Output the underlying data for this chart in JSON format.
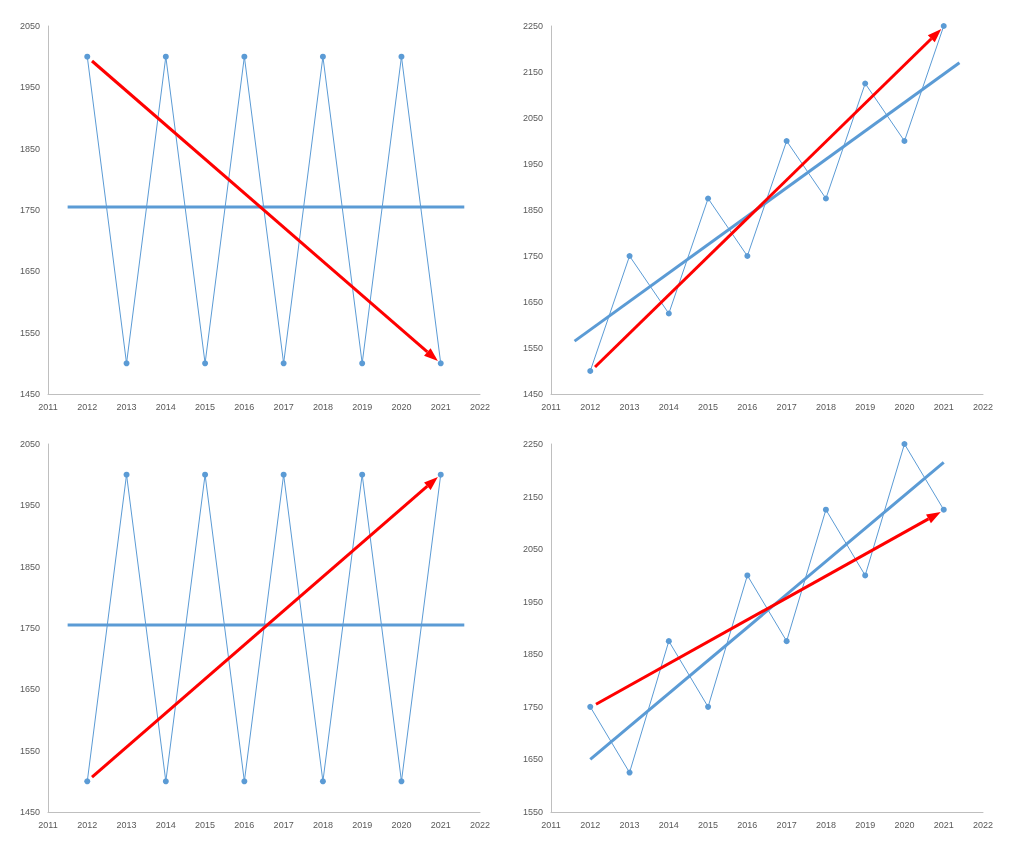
{
  "chart_data": [
    {
      "type": "line",
      "xlim": [
        2011,
        2022
      ],
      "xticks": [
        2011,
        2012,
        2013,
        2014,
        2015,
        2016,
        2017,
        2018,
        2019,
        2020,
        2021,
        2022
      ],
      "ylim": [
        1450,
        2050
      ],
      "yticks": [
        1450,
        1550,
        1650,
        1750,
        1850,
        1950,
        2050
      ],
      "grid": false,
      "series": [
        {
          "color": "#5b9bd5",
          "marker": "circle",
          "x": [
            2012,
            2013,
            2014,
            2015,
            2016,
            2017,
            2018,
            2019,
            2020,
            2021
          ],
          "values": [
            2000,
            1500,
            2000,
            1500,
            2000,
            1500,
            2000,
            1500,
            2000,
            1500
          ]
        },
        {
          "color": "#5b9bd5",
          "marker": "none",
          "x": [
            2011.5,
            2021.6
          ],
          "values": [
            1755,
            1755
          ]
        }
      ]
    },
    {
      "type": "line",
      "xlim": [
        2011,
        2022
      ],
      "xticks": [
        2011,
        2012,
        2013,
        2014,
        2015,
        2016,
        2017,
        2018,
        2019,
        2020,
        2021,
        2022
      ],
      "ylim": [
        1450,
        2250
      ],
      "yticks": [
        1450,
        1550,
        1650,
        1750,
        1850,
        1950,
        2050,
        2150,
        2250
      ],
      "grid": false,
      "series": [
        {
          "color": "#5b9bd5",
          "marker": "circle",
          "x": [
            2012,
            2013,
            2014,
            2015,
            2016,
            2017,
            2018,
            2019,
            2020,
            2021
          ],
          "values": [
            1500,
            1750,
            1625,
            1875,
            1750,
            2000,
            1875,
            2125,
            2000,
            2250
          ]
        },
        {
          "color": "#5b9bd5",
          "marker": "none",
          "x": [
            2011.6,
            2021.4
          ],
          "values": [
            1565,
            2170
          ]
        }
      ]
    },
    {
      "type": "line",
      "xlim": [
        2011,
        2022
      ],
      "xticks": [
        2011,
        2012,
        2013,
        2014,
        2015,
        2016,
        2017,
        2018,
        2019,
        2020,
        2021,
        2022
      ],
      "ylim": [
        1450,
        2050
      ],
      "yticks": [
        1450,
        1550,
        1650,
        1750,
        1850,
        1950,
        2050
      ],
      "grid": false,
      "series": [
        {
          "color": "#5b9bd5",
          "marker": "circle",
          "x": [
            2012,
            2013,
            2014,
            2015,
            2016,
            2017,
            2018,
            2019,
            2020,
            2021
          ],
          "values": [
            1500,
            2000,
            1500,
            2000,
            1500,
            2000,
            1500,
            2000,
            1500,
            2000
          ]
        },
        {
          "color": "#5b9bd5",
          "marker": "none",
          "x": [
            2011.5,
            2021.6
          ],
          "values": [
            1755,
            1755
          ]
        }
      ]
    },
    {
      "type": "line",
      "xlim": [
        2011,
        2022
      ],
      "xticks": [
        2011,
        2012,
        2013,
        2014,
        2015,
        2016,
        2017,
        2018,
        2019,
        2020,
        2021,
        2022
      ],
      "ylim": [
        1550,
        2250
      ],
      "yticks": [
        1550,
        1650,
        1750,
        1850,
        1950,
        2050,
        2150,
        2250
      ],
      "grid": false,
      "series": [
        {
          "color": "#5b9bd5",
          "marker": "circle",
          "x": [
            2012,
            2013,
            2014,
            2015,
            2016,
            2017,
            2018,
            2019,
            2020,
            2021
          ],
          "values": [
            1750,
            1625,
            1875,
            1750,
            2000,
            1875,
            2125,
            2000,
            2250,
            2125
          ]
        },
        {
          "color": "#5b9bd5",
          "marker": "none",
          "x": [
            2012,
            2021
          ],
          "values": [
            1650,
            2215
          ]
        }
      ]
    }
  ]
}
